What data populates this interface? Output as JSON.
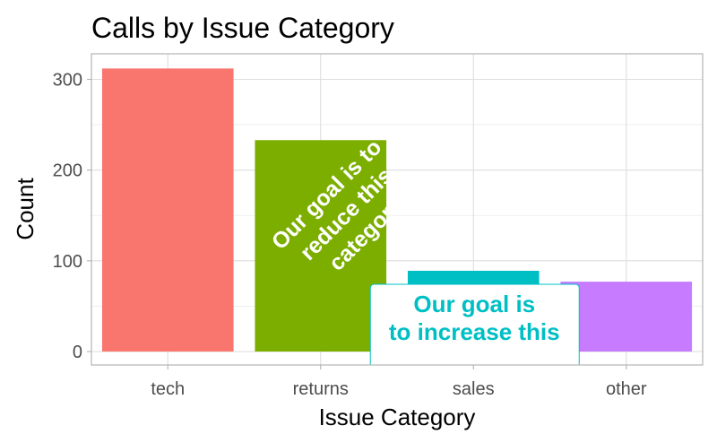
{
  "chart_data": {
    "type": "bar",
    "title": "Calls by Issue Category",
    "xlabel": "Issue Category",
    "ylabel": "Count",
    "categories": [
      "tech",
      "returns",
      "sales",
      "other"
    ],
    "values": [
      312,
      233,
      89,
      77
    ],
    "colors": [
      "#f8766d",
      "#7cae00",
      "#00bfc4",
      "#c77cff"
    ],
    "ylim": [
      0,
      330
    ],
    "yticks": [
      0,
      100,
      200,
      300
    ],
    "grid": true,
    "legend": "none",
    "annotations": [
      {
        "category": "returns",
        "lines": [
          "Our goal is to",
          "reduce this",
          "category"
        ],
        "color": "#ffffff",
        "angle": -45
      },
      {
        "category": "sales",
        "lines": [
          "Our goal is",
          "to increase this"
        ],
        "color": "#00bfc4",
        "boxed": true
      }
    ]
  }
}
